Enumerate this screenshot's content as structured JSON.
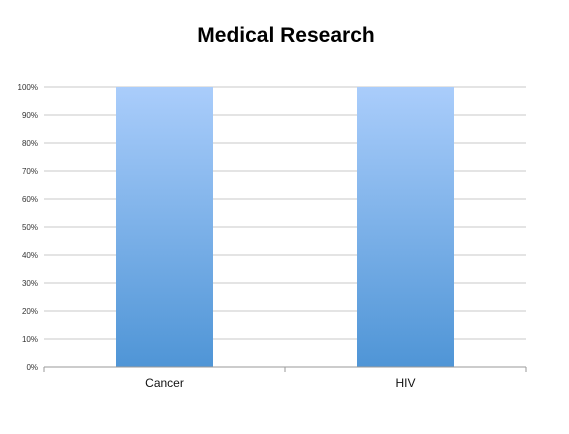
{
  "chart_data": {
    "type": "bar",
    "title": "Medical Research",
    "xlabel": "",
    "ylabel": "",
    "categories": [
      "Cancer",
      "HIV"
    ],
    "values": [
      100,
      100
    ],
    "ylim": [
      0,
      100
    ],
    "yticks": [
      "0%",
      "10%",
      "20%",
      "30%",
      "40%",
      "50%",
      "60%",
      "70%",
      "80%",
      "90%",
      "100%"
    ],
    "grid": true,
    "legend": "none",
    "bar_color_top": "#aacdfb",
    "bar_color_bottom": "#4f95d6"
  }
}
